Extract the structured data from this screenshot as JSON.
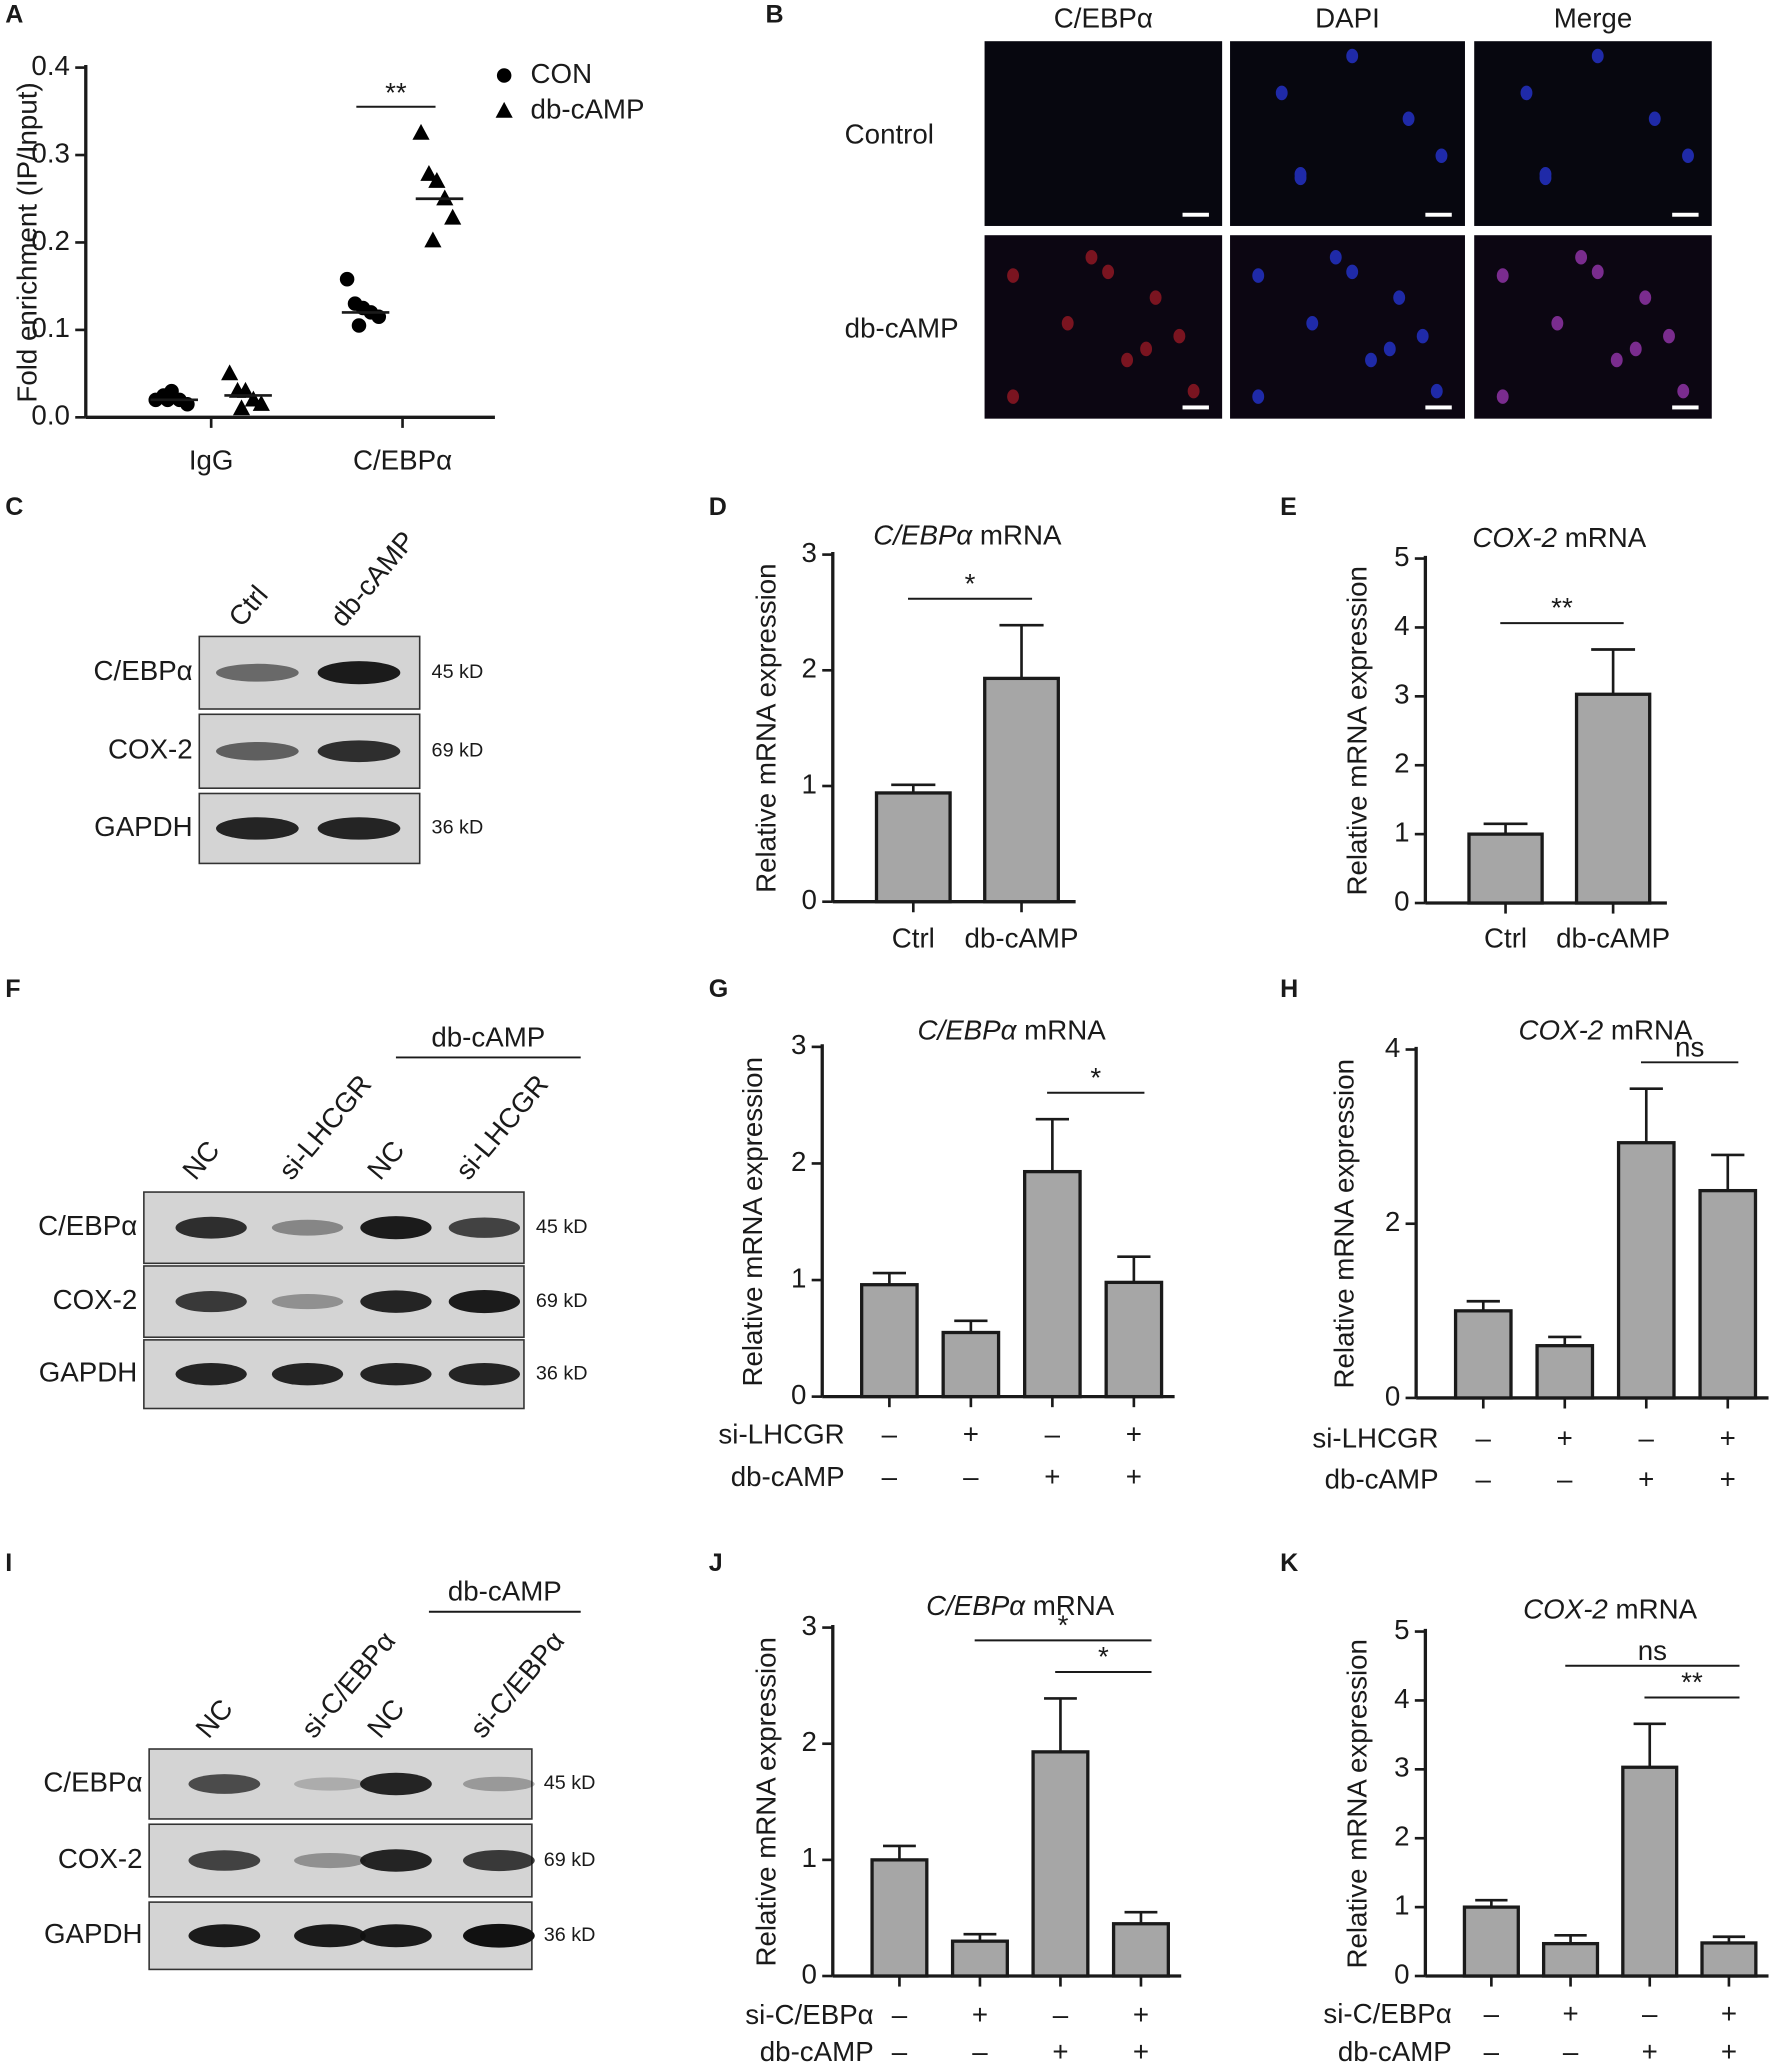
{
  "chart_data": [
    {
      "panel": "A",
      "type": "scatter",
      "y_label": "Fold enrichment (IP/Input)",
      "categories": [
        "IgG",
        "C/EBPα"
      ],
      "series": [
        {
          "name": "CON",
          "marker": "circle",
          "color": "#000000",
          "values": [
            [
              0.02,
              0.025,
              0.03,
              0.02,
              0.015,
              0.02
            ],
            [
              0.158,
              0.13,
              0.125,
              0.12,
              0.115,
              0.105
            ]
          ],
          "means": [
            0.02,
            0.12
          ]
        },
        {
          "name": "db-cAMP",
          "marker": "triangle",
          "color": "#000000",
          "values": [
            [
              0.05,
              0.03,
              0.03,
              0.02,
              0.015,
              0.01
            ],
            [
              0.325,
              0.278,
              0.27,
              0.25,
              0.228,
              0.202
            ]
          ],
          "means": [
            0.025,
            0.25
          ]
        }
      ],
      "ylim": [
        0,
        0.4
      ],
      "yticks": [
        {
          "value": 0,
          "label": "0.0"
        },
        0.1,
        0.2,
        0.3,
        0.4
      ],
      "annotations": [
        {
          "text": "**",
          "category": 1
        }
      ]
    },
    {
      "panel": "D",
      "type": "bar",
      "title": {
        "gene": "C/EBPα",
        "suffix": "mRNA"
      },
      "y_label": "Relative mRNA expression",
      "categories": [
        "Ctrl",
        "db-cAMP"
      ],
      "values": [
        0.94,
        1.93
      ],
      "errors": [
        0.07,
        0.46
      ],
      "color": "#a6a6a6",
      "ylim": [
        0,
        3
      ],
      "yticks": [
        0,
        1,
        2,
        3
      ],
      "brackets": [
        {
          "text": "*",
          "from": 0,
          "to": 1
        }
      ]
    },
    {
      "panel": "E",
      "type": "bar",
      "title": {
        "gene": "COX-2",
        "suffix": "mRNA"
      },
      "y_label": "Relative mRNA expression",
      "categories": [
        "Ctrl",
        "db-cAMP"
      ],
      "values": [
        1.0,
        3.03
      ],
      "errors": [
        0.15,
        0.65
      ],
      "color": "#a6a6a6",
      "ylim": [
        0,
        5
      ],
      "yticks": [
        0,
        1,
        2,
        3,
        4,
        5
      ],
      "brackets": [
        {
          "text": "**",
          "from": 0,
          "to": 1
        }
      ]
    },
    {
      "panel": "G",
      "type": "bar",
      "title": {
        "gene": "C/EBPα",
        "suffix": "mRNA"
      },
      "y_label": "Relative mRNA expression",
      "conditions": [
        {
          "name": "si-LHCGR",
          "marks": [
            "–",
            "+",
            "–",
            "+"
          ]
        },
        {
          "name": "db-cAMP",
          "marks": [
            "–",
            "–",
            "+",
            "+"
          ]
        }
      ],
      "values": [
        0.96,
        0.55,
        1.93,
        0.98
      ],
      "errors": [
        0.1,
        0.1,
        0.45,
        0.22
      ],
      "color": "#a6a6a6",
      "ylim": [
        0,
        3
      ],
      "yticks": [
        0,
        1,
        2,
        3
      ],
      "brackets": [
        {
          "text": "*",
          "from": 2,
          "to": 3
        }
      ]
    },
    {
      "panel": "H",
      "type": "bar",
      "title": {
        "gene": "COX-2",
        "suffix": "mRNA"
      },
      "y_label": "Relative mRNA expression",
      "conditions": [
        {
          "name": "si-LHCGR",
          "marks": [
            "–",
            "+",
            "–",
            "+"
          ]
        },
        {
          "name": "db-cAMP",
          "marks": [
            "–",
            "–",
            "+",
            "+"
          ]
        }
      ],
      "values": [
        1.0,
        0.6,
        2.93,
        2.38
      ],
      "errors": [
        0.11,
        0.1,
        0.62,
        0.41
      ],
      "color": "#a6a6a6",
      "ylim": [
        0,
        4
      ],
      "yticks": [
        0,
        2,
        4
      ],
      "brackets": [
        {
          "text": "ns",
          "from": 2,
          "to": 3
        }
      ]
    },
    {
      "panel": "J",
      "type": "bar",
      "title": {
        "gene": "C/EBPα",
        "suffix": "mRNA"
      },
      "y_label": "Relative mRNA expression",
      "conditions": [
        {
          "name": "si-C/EBPα",
          "marks": [
            "–",
            "+",
            "–",
            "+"
          ]
        },
        {
          "name": "db-cAMP",
          "marks": [
            "–",
            "–",
            "+",
            "+"
          ]
        }
      ],
      "values": [
        1.0,
        0.3,
        1.93,
        0.45
      ],
      "errors": [
        0.12,
        0.06,
        0.46,
        0.1
      ],
      "color": "#a6a6a6",
      "ylim": [
        0,
        3
      ],
      "yticks": [
        0,
        1,
        2,
        3
      ],
      "brackets": [
        {
          "text": "*",
          "from": 1,
          "to": 3
        },
        {
          "text": "*",
          "from": 2,
          "to": 3
        }
      ]
    },
    {
      "panel": "K",
      "type": "bar",
      "title": {
        "gene": "COX-2",
        "suffix": "mRNA"
      },
      "y_label": "Relative mRNA expression",
      "conditions": [
        {
          "name": "si-C/EBPα",
          "marks": [
            "–",
            "+",
            "–",
            "+"
          ]
        },
        {
          "name": "db-cAMP",
          "marks": [
            "–",
            "–",
            "+",
            "+"
          ]
        }
      ],
      "values": [
        1.0,
        0.47,
        3.03,
        0.48
      ],
      "errors": [
        0.1,
        0.12,
        0.63,
        0.09
      ],
      "color": "#a6a6a6",
      "ylim": [
        0,
        5
      ],
      "yticks": [
        0,
        1,
        2,
        3,
        4,
        5
      ],
      "brackets": [
        {
          "text": "ns",
          "from": 1,
          "to": 3
        },
        {
          "text": "**",
          "from": 2,
          "to": 3
        }
      ]
    }
  ],
  "images": {
    "panel": "B",
    "columns": [
      "C/EBPα",
      "DAPI",
      "Merge"
    ],
    "rows": [
      "Control",
      "db-cAMP"
    ]
  },
  "blots": [
    {
      "panel": "C",
      "lanes": [
        "Ctrl",
        "db-cAMP"
      ],
      "bands": [
        {
          "name": "C/EBPα",
          "size": "45 kD"
        },
        {
          "name": "COX-2",
          "size": "69 kD"
        },
        {
          "name": "GAPDH",
          "size": "36 kD"
        }
      ]
    },
    {
      "panel": "F",
      "lanes": [
        "NC",
        "si-LHCGR",
        "NC",
        "si-LHCGR"
      ],
      "group": "db-cAMP",
      "bands": [
        {
          "name": "C/EBPα",
          "size": "45 kD"
        },
        {
          "name": "COX-2",
          "size": "69 kD"
        },
        {
          "name": "GAPDH",
          "size": "36 kD"
        }
      ]
    },
    {
      "panel": "I",
      "lanes": [
        "NC",
        "si-C/EBPα",
        "NC",
        "si-C/EBPα"
      ],
      "group": "db-cAMP",
      "bands": [
        {
          "name": "C/EBPα",
          "size": "45 kD"
        },
        {
          "name": "COX-2",
          "size": "69 kD"
        },
        {
          "name": "GAPDH",
          "size": "36 kD"
        }
      ]
    }
  ]
}
